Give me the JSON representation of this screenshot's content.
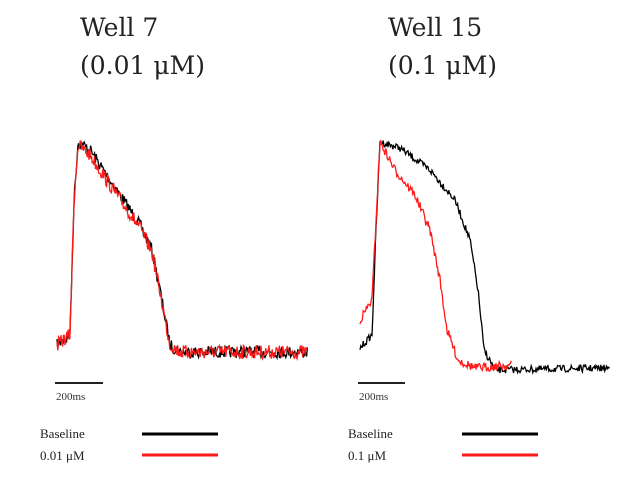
{
  "panels": [
    {
      "title": "Well 7",
      "subtitle": "(0.01 μM)",
      "scale_label": "200ms",
      "legend": [
        {
          "label": "Baseline",
          "color": "#000000"
        },
        {
          "label": "0.01 μM",
          "color": "#ff1a1a"
        }
      ]
    },
    {
      "title": "Well 15",
      "subtitle": "(0.1 μM)",
      "scale_label": "200ms",
      "legend": [
        {
          "label": "Baseline",
          "color": "#000000"
        },
        {
          "label": "0.1 μM",
          "color": "#ff1a1a"
        }
      ]
    }
  ]
}
